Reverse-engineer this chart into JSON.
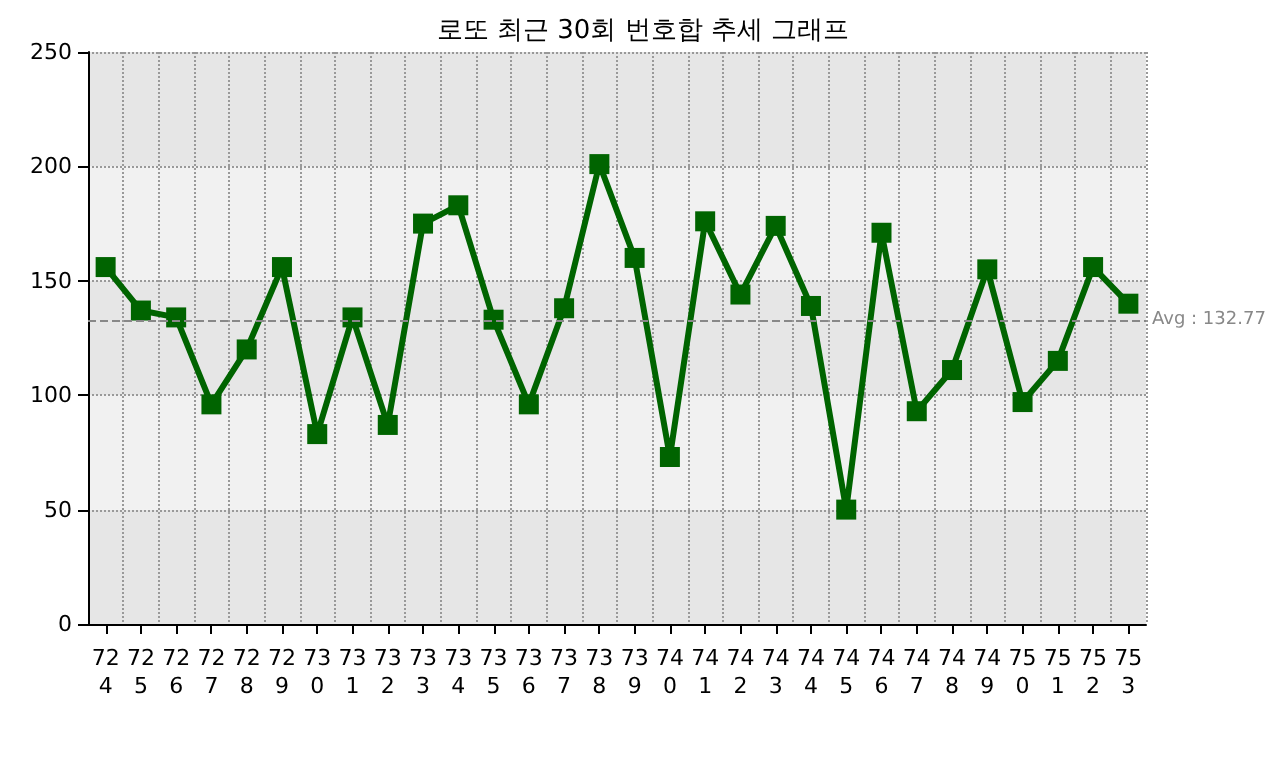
{
  "chart_data": {
    "type": "line",
    "title": "로또 최근 30회 번호합 추세 그래프",
    "categories": [
      "724",
      "725",
      "726",
      "727",
      "728",
      "729",
      "730",
      "731",
      "732",
      "733",
      "734",
      "735",
      "736",
      "737",
      "738",
      "739",
      "740",
      "741",
      "742",
      "743",
      "744",
      "745",
      "746",
      "747",
      "748",
      "749",
      "750",
      "751",
      "752",
      "753"
    ],
    "series": [
      {
        "color": "#006400",
        "values": [
          156,
          137,
          134,
          96,
          120,
          156,
          83,
          134,
          87,
          175,
          183,
          133,
          96,
          138,
          201,
          160,
          73,
          176,
          144,
          174,
          139,
          50,
          171,
          93,
          111,
          155,
          97,
          115,
          156,
          140
        ]
      }
    ],
    "ylim": [
      0,
      250
    ],
    "yticks": [
      0,
      50,
      100,
      150,
      200,
      250
    ],
    "grid": true,
    "marker": "square",
    "line_style": "solid",
    "ref_lines": [
      {
        "axis": "y",
        "value": 132.77,
        "label": "Avg : 132.77",
        "color": "#888888",
        "line_style": "dashed"
      }
    ]
  }
}
